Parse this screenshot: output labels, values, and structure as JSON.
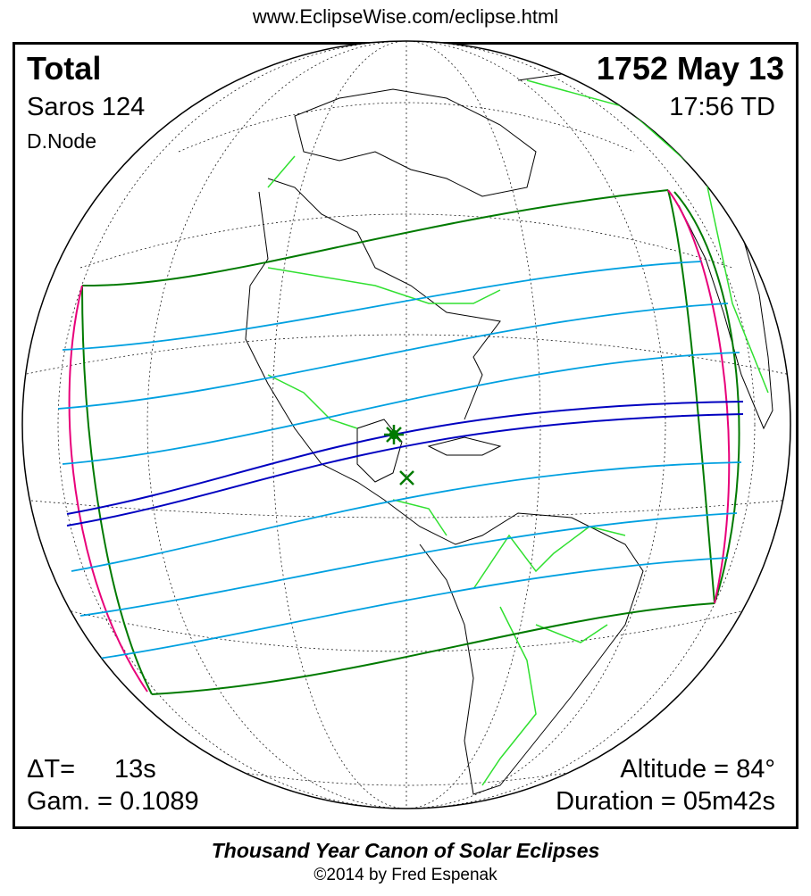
{
  "header": {
    "url": "www.EclipseWise.com/eclipse.html"
  },
  "eclipse": {
    "type": "Total",
    "saros": "Saros 124",
    "node": "D.Node",
    "date": "1752 May 13",
    "time": "17:56 TD",
    "delta_t_label": "ΔT=",
    "delta_t_value": "13s",
    "gamma": "Gam. = 0.1089",
    "altitude": "Altitude = 84°",
    "duration": "Duration = 05m42s"
  },
  "footer": {
    "title": "Thousand Year Canon of Solar Eclipses",
    "copyright": "©2014 by Fred Espenak"
  },
  "colors": {
    "penumbra_limits": "#007a00",
    "rise_set": "#e8007a",
    "hourly_lines": "#00a0e0",
    "central_path": "#0000c0",
    "borders": "#30e030",
    "coast": "#000000"
  },
  "markers": [
    {
      "icon": "greatest-eclipse-star-icon"
    },
    {
      "icon": "greatest-duration-x-icon"
    }
  ]
}
